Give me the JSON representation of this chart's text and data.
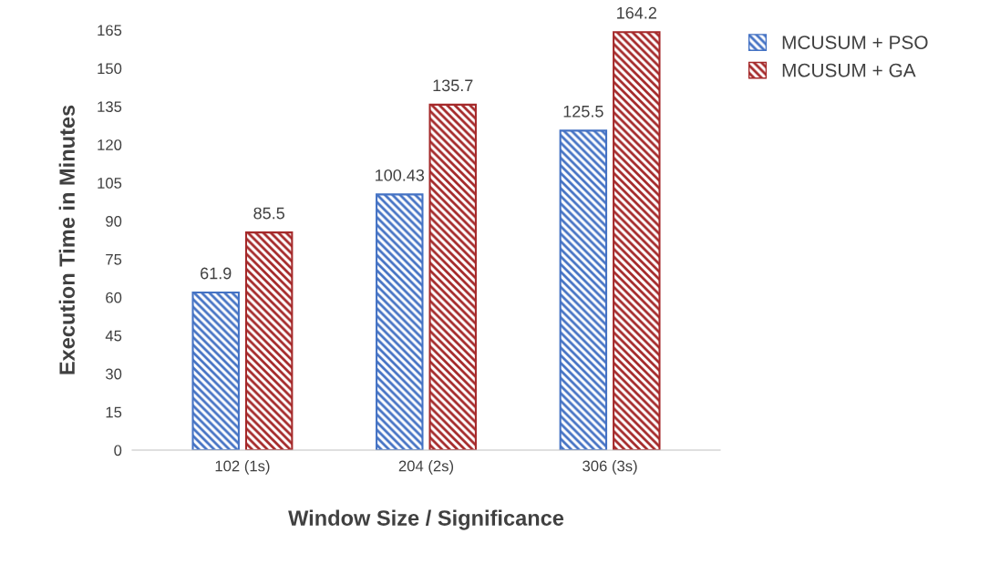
{
  "chart_data": {
    "type": "bar",
    "xlabel": "Window Size / Significance",
    "ylabel": "Execution Time in Minutes",
    "categories": [
      "102 (1s)",
      "204 (2s)",
      "306 (3s)"
    ],
    "series": [
      {
        "name": "MCUSUM + PSO",
        "color": "#4472c4",
        "values": [
          61.9,
          100.43,
          125.5
        ]
      },
      {
        "name": "MCUSUM + GA",
        "color": "#a5292a",
        "values": [
          85.5,
          135.7,
          164.2
        ]
      }
    ],
    "ylim": [
      0,
      165
    ],
    "yticks": [
      0,
      15,
      30,
      45,
      60,
      75,
      90,
      105,
      120,
      135,
      150,
      165
    ],
    "data_labels": true,
    "grid": false,
    "legend": "top right"
  }
}
